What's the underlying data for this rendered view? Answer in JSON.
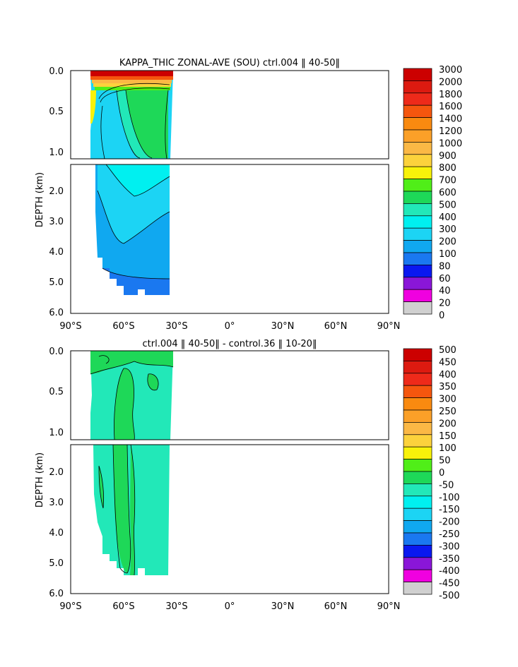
{
  "chart_data": [
    {
      "type": "heatmap",
      "title": "KAPPA_THIC ZONAL-AVE (SOU) ctrl.004 ‖ 40-50‖",
      "ylabel": "DEPTH (km)",
      "y_ticks": [
        "0.0",
        "0.5",
        "1.0",
        "2.0",
        "3.0",
        "4.0",
        "5.0",
        "6.0"
      ],
      "x_ticks": [
        "90°S",
        "60°S",
        "30°S",
        "0°",
        "30°N",
        "60°N",
        "90°N"
      ],
      "x_range": [
        -90,
        90
      ],
      "y_range_km": [
        0,
        6
      ],
      "y_break_km": 1.1,
      "levels": [
        "3000",
        "2000",
        "1800",
        "1600",
        "1400",
        "1200",
        "1000",
        "900",
        "800",
        "700",
        "600",
        "500",
        "400",
        "300",
        "200",
        "100",
        "80",
        "60",
        "40",
        "20",
        "0"
      ],
      "colors": [
        "#cc0000",
        "#dd1a10",
        "#ee2a1a",
        "#f5560e",
        "#f98a10",
        "#fba028",
        "#fbb845",
        "#fcd23c",
        "#f8f20a",
        "#50ee18",
        "#1ed858",
        "#22e8b8",
        "#00f0f0",
        "#1cd4f4",
        "#10a8f0",
        "#1a78f0",
        "#0a18f0",
        "#8a16d8",
        "#f000e0",
        "#d0d0d0",
        "#707070"
      ]
    },
    {
      "type": "heatmap",
      "title": "ctrl.004 ‖ 40-50‖ - control.36 ‖ 10-20‖",
      "ylabel": "DEPTH (km)",
      "y_ticks": [
        "0.0",
        "0.5",
        "1.0",
        "2.0",
        "3.0",
        "4.0",
        "5.0",
        "6.0"
      ],
      "x_ticks": [
        "90°S",
        "60°S",
        "30°S",
        "0°",
        "30°N",
        "60°N",
        "90°N"
      ],
      "x_range": [
        -90,
        90
      ],
      "y_range_km": [
        0,
        6
      ],
      "y_break_km": 1.1,
      "levels": [
        "500",
        "450",
        "400",
        "350",
        "300",
        "250",
        "200",
        "150",
        "100",
        "50",
        "0",
        "-50",
        "-100",
        "-150",
        "-200",
        "-250",
        "-300",
        "-350",
        "-400",
        "-450",
        "-500"
      ],
      "colors": [
        "#cc0000",
        "#dd1a10",
        "#ee2a1a",
        "#f5560e",
        "#f98a10",
        "#fba028",
        "#fbb845",
        "#fcd23c",
        "#f8f20a",
        "#50ee18",
        "#1ed858",
        "#22e8b8",
        "#00f0f0",
        "#1cd4f4",
        "#10a8f0",
        "#1a78f0",
        "#0a18f0",
        "#8a16d8",
        "#f000e0",
        "#d0d0d0",
        "#707070"
      ]
    }
  ]
}
